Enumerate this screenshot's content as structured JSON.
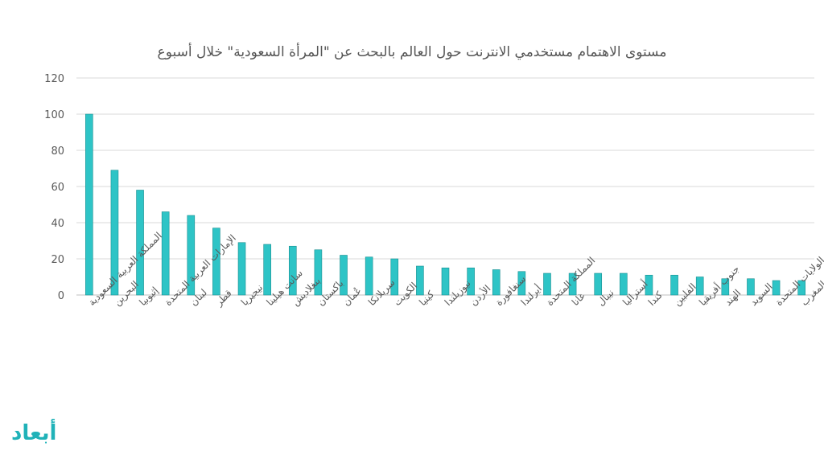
{
  "chart_data": {
    "type": "bar",
    "title": "مستوى الاهتمام مستخدمي الانترنت حول العالم بالبحث عن \"المرأة السعودية\" خلال أسبوع",
    "xlabel": "",
    "ylabel": "",
    "ylim": [
      0,
      120
    ],
    "yticks": [
      0,
      20,
      40,
      60,
      80,
      100,
      120
    ],
    "grid": true,
    "bar_color": "#2ec4c6",
    "bar_edge_color": "#1a8f91",
    "categories": [
      "المملكة العربية السعودية",
      "البحرين",
      "إثيوبيا",
      "الإمارات العربية المتحدة",
      "لبنان",
      "قطر",
      "نيجيريا",
      "سانت هيلينا",
      "بنغلاديش",
      "باكستان",
      "عُمان",
      "سريلانكا",
      "الكويت",
      "كينيا",
      "نيوزيلندا",
      "الأردن",
      "سنغافورة",
      "أيرلندا",
      "المملكة المتحدة",
      "غانا",
      "نيبال",
      "أستراليا",
      "كندا",
      "الفلبين",
      "جنوب أفريقيا",
      "الهند",
      "السويد",
      "الولايات المتحدة",
      "المغرب"
    ],
    "values": [
      100,
      69,
      58,
      46,
      44,
      37,
      29,
      28,
      27,
      25,
      22,
      21,
      20,
      16,
      15,
      15,
      14,
      13,
      12,
      12,
      12,
      12,
      11,
      11,
      10,
      9,
      9,
      8,
      8
    ]
  },
  "brand": {
    "logo_text": "أبعاد"
  }
}
